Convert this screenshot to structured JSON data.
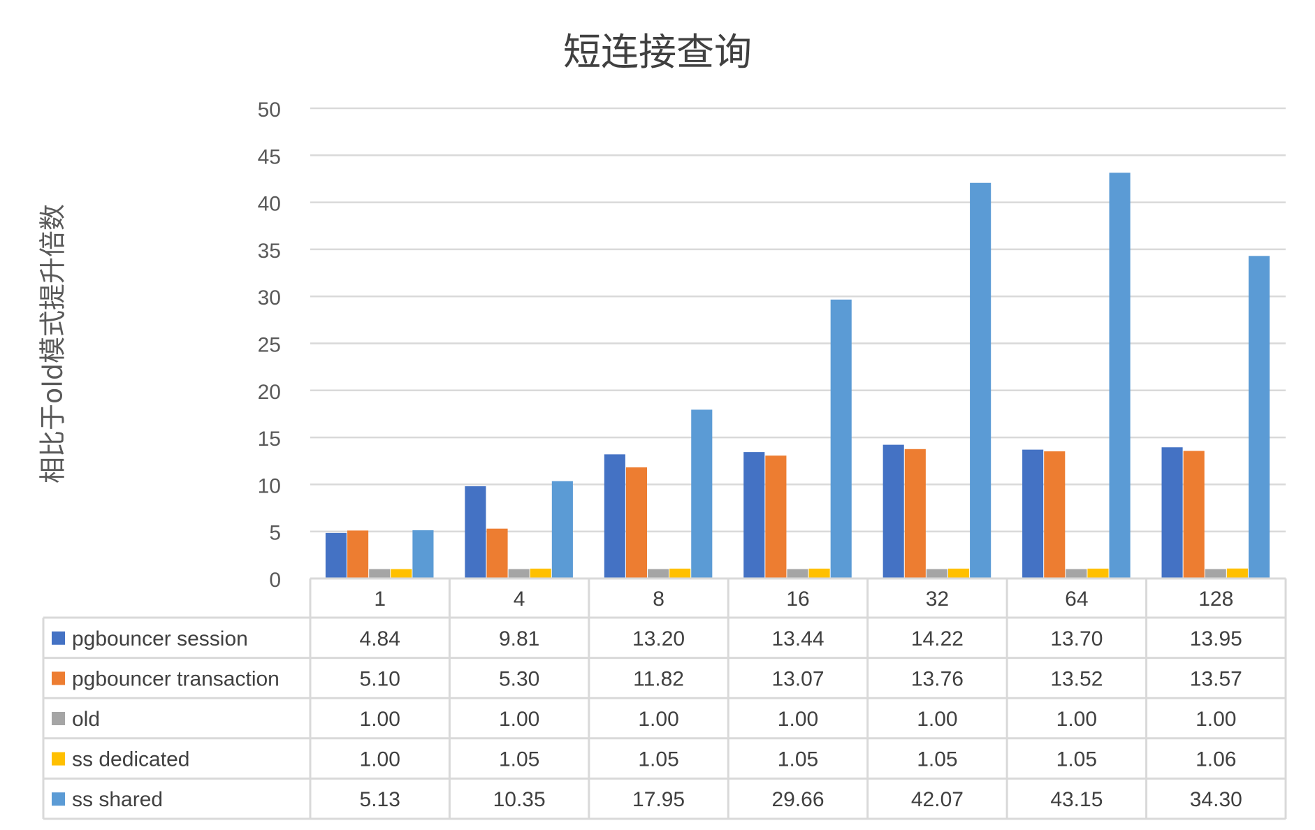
{
  "chart_data": {
    "type": "bar",
    "title": "短连接查询",
    "xlabel": "",
    "ylabel": "相比于old模式提升倍数",
    "ylim": [
      0,
      50
    ],
    "yticks": [
      0,
      5,
      10,
      15,
      20,
      25,
      30,
      35,
      40,
      45,
      50
    ],
    "grid": true,
    "legend": "data-table",
    "categories": [
      "1",
      "4",
      "8",
      "16",
      "32",
      "64",
      "128"
    ],
    "series": [
      {
        "name": "pgbouncer session",
        "color": "#4472C4",
        "values": [
          4.84,
          9.81,
          13.2,
          13.44,
          14.22,
          13.7,
          13.95
        ],
        "labels": [
          "4.84",
          "9.81",
          "13.20",
          "13.44",
          "14.22",
          "13.70",
          "13.95"
        ]
      },
      {
        "name": "pgbouncer transaction",
        "color": "#ED7D31",
        "values": [
          5.1,
          5.3,
          11.82,
          13.07,
          13.76,
          13.52,
          13.57
        ],
        "labels": [
          "5.10",
          "5.30",
          "11.82",
          "13.07",
          "13.76",
          "13.52",
          "13.57"
        ]
      },
      {
        "name": "old",
        "color": "#A5A5A5",
        "values": [
          1.0,
          1.0,
          1.0,
          1.0,
          1.0,
          1.0,
          1.0
        ],
        "labels": [
          "1.00",
          "1.00",
          "1.00",
          "1.00",
          "1.00",
          "1.00",
          "1.00"
        ]
      },
      {
        "name": "ss dedicated",
        "color": "#FFC000",
        "values": [
          1.0,
          1.05,
          1.05,
          1.05,
          1.05,
          1.05,
          1.06
        ],
        "labels": [
          "1.00",
          "1.05",
          "1.05",
          "1.05",
          "1.05",
          "1.05",
          "1.06"
        ]
      },
      {
        "name": "ss shared",
        "color": "#5B9BD5",
        "values": [
          5.13,
          10.35,
          17.95,
          29.66,
          42.07,
          43.15,
          34.3
        ],
        "labels": [
          "5.13",
          "10.35",
          "17.95",
          "29.66",
          "42.07",
          "43.15",
          "34.30"
        ]
      }
    ]
  }
}
